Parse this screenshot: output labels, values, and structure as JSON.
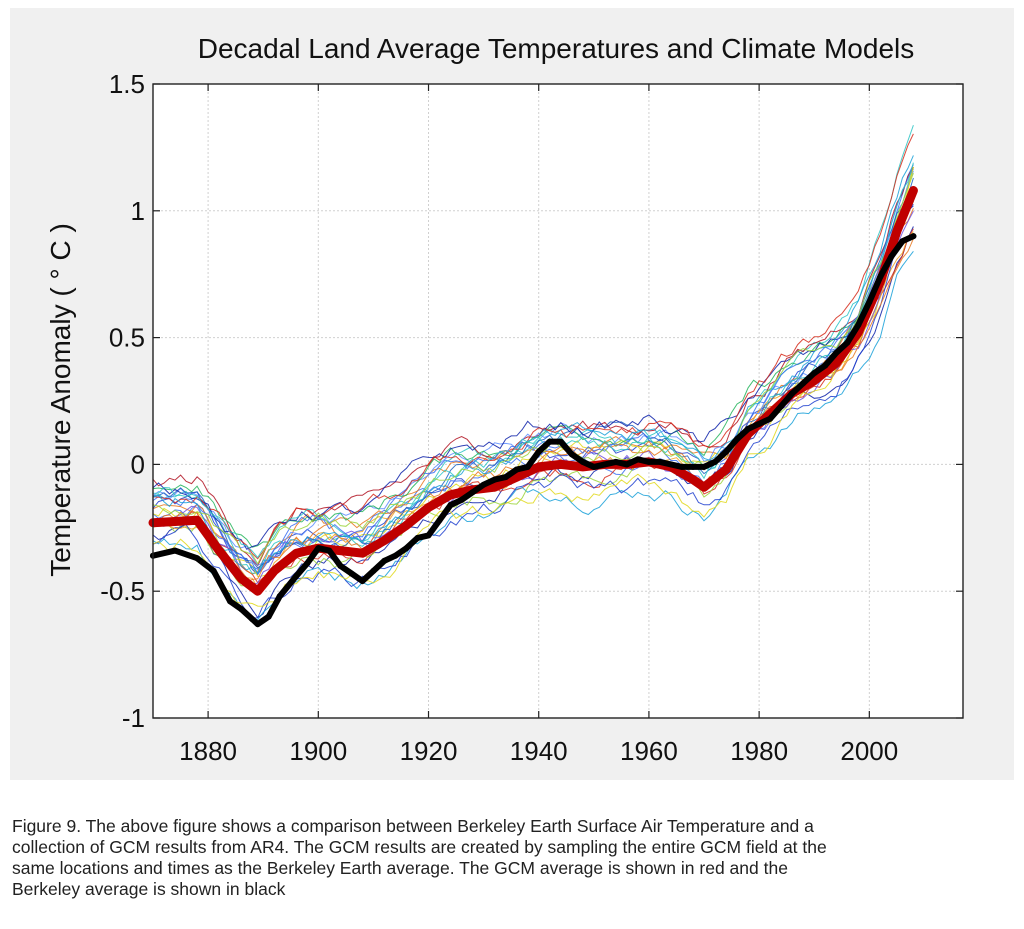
{
  "chart_data": {
    "type": "line",
    "title": "Decadal Land Average Temperatures and Climate Models",
    "ylabel": "Temperature Anomaly ( ° C )",
    "xlabel": "",
    "xlim": [
      1870,
      2017
    ],
    "ylim": [
      -1,
      1.5
    ],
    "x_ticks": [
      1880,
      1900,
      1920,
      1940,
      1960,
      1980,
      2000
    ],
    "x_tick_labels": [
      "1880",
      "1900",
      "1920",
      "1940",
      "1960",
      "1980",
      "2000"
    ],
    "y_ticks": [
      -1,
      -0.5,
      0,
      0.5,
      1,
      1.5
    ],
    "y_tick_labels": [
      "-1",
      "-0.5",
      "0",
      "0.5",
      "1",
      "1.5"
    ],
    "grid": true,
    "series": [
      {
        "color": "#c00000",
        "x": [
          1870,
          1878,
          1882,
          1886,
          1889,
          1892,
          1896,
          1900,
          1904,
          1908,
          1912,
          1916,
          1920,
          1924,
          1928,
          1932,
          1936,
          1940,
          1944,
          1948,
          1952,
          1956,
          1960,
          1964,
          1968,
          1970,
          1974,
          1978,
          1982,
          1986,
          1990,
          1994,
          1998,
          2002,
          2005,
          2008
        ],
        "values": [
          -0.23,
          -0.22,
          -0.34,
          -0.45,
          -0.5,
          -0.42,
          -0.35,
          -0.33,
          -0.34,
          -0.35,
          -0.3,
          -0.24,
          -0.17,
          -0.12,
          -0.1,
          -0.09,
          -0.05,
          -0.01,
          0.0,
          -0.01,
          0.0,
          0.0,
          0.01,
          -0.01,
          -0.06,
          -0.09,
          -0.02,
          0.12,
          0.2,
          0.28,
          0.33,
          0.4,
          0.52,
          0.72,
          0.92,
          1.08
        ]
      },
      {
        "color": "#000000",
        "x": [
          1870,
          1874,
          1878,
          1881,
          1884,
          1886,
          1888,
          1889,
          1891,
          1893,
          1896,
          1898,
          1900,
          1902,
          1904,
          1906,
          1908,
          1910,
          1912,
          1914,
          1916,
          1918,
          1920,
          1922,
          1924,
          1926,
          1928,
          1930,
          1932,
          1934,
          1936,
          1938,
          1940,
          1942,
          1944,
          1946,
          1948,
          1950,
          1952,
          1954,
          1956,
          1958,
          1960,
          1962,
          1964,
          1966,
          1968,
          1970,
          1972,
          1974,
          1976,
          1978,
          1980,
          1982,
          1984,
          1986,
          1988,
          1990,
          1992,
          1994,
          1996,
          1998,
          2000,
          2002,
          2004,
          2006,
          2008
        ],
        "values": [
          -0.36,
          -0.34,
          -0.37,
          -0.42,
          -0.54,
          -0.57,
          -0.61,
          -0.63,
          -0.6,
          -0.52,
          -0.44,
          -0.39,
          -0.33,
          -0.34,
          -0.4,
          -0.43,
          -0.46,
          -0.42,
          -0.38,
          -0.36,
          -0.33,
          -0.29,
          -0.28,
          -0.22,
          -0.16,
          -0.14,
          -0.11,
          -0.08,
          -0.06,
          -0.05,
          -0.02,
          -0.01,
          0.05,
          0.09,
          0.09,
          0.04,
          0.01,
          -0.01,
          0.0,
          0.01,
          0.0,
          0.02,
          0.01,
          0.01,
          0.0,
          -0.01,
          -0.01,
          -0.01,
          0.01,
          0.05,
          0.1,
          0.14,
          0.16,
          0.18,
          0.23,
          0.28,
          0.32,
          0.36,
          0.39,
          0.44,
          0.48,
          0.55,
          0.64,
          0.74,
          0.82,
          0.88,
          0.9
        ]
      }
    ]
  },
  "caption": {
    "line1": "Figure 9. The above figure shows a comparison between Berkeley Earth Surface Air Temperature and a",
    "line2": "collection of GCM results  from AR4. The GCM results are created by sampling the entire GCM field at the",
    "line3": "same locations and times  as the Berkeley Earth average. The GCM average is shown in red and the",
    "line4": "Berkeley average is shown in black"
  }
}
